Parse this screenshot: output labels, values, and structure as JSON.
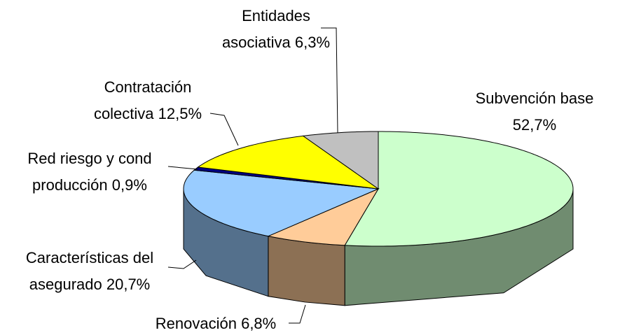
{
  "chart_data": {
    "type": "pie",
    "categories": [
      "Subvención base",
      "Renovación",
      "Características del asegurado",
      "Red riesgo y cond producción",
      "Contratación colectiva",
      "Entidades asociativa"
    ],
    "values": [
      52.7,
      6.8,
      20.7,
      0.9,
      12.5,
      6.3
    ],
    "value_labels": [
      "52,7%",
      "6,8%",
      "20,7%",
      "0,9%",
      "12,5%",
      "6,3%"
    ],
    "colors": [
      "#ccffcc",
      "#ffcc99",
      "#99ccff",
      "#000080",
      "#ffff00",
      "#c0c0c0"
    ]
  }
}
